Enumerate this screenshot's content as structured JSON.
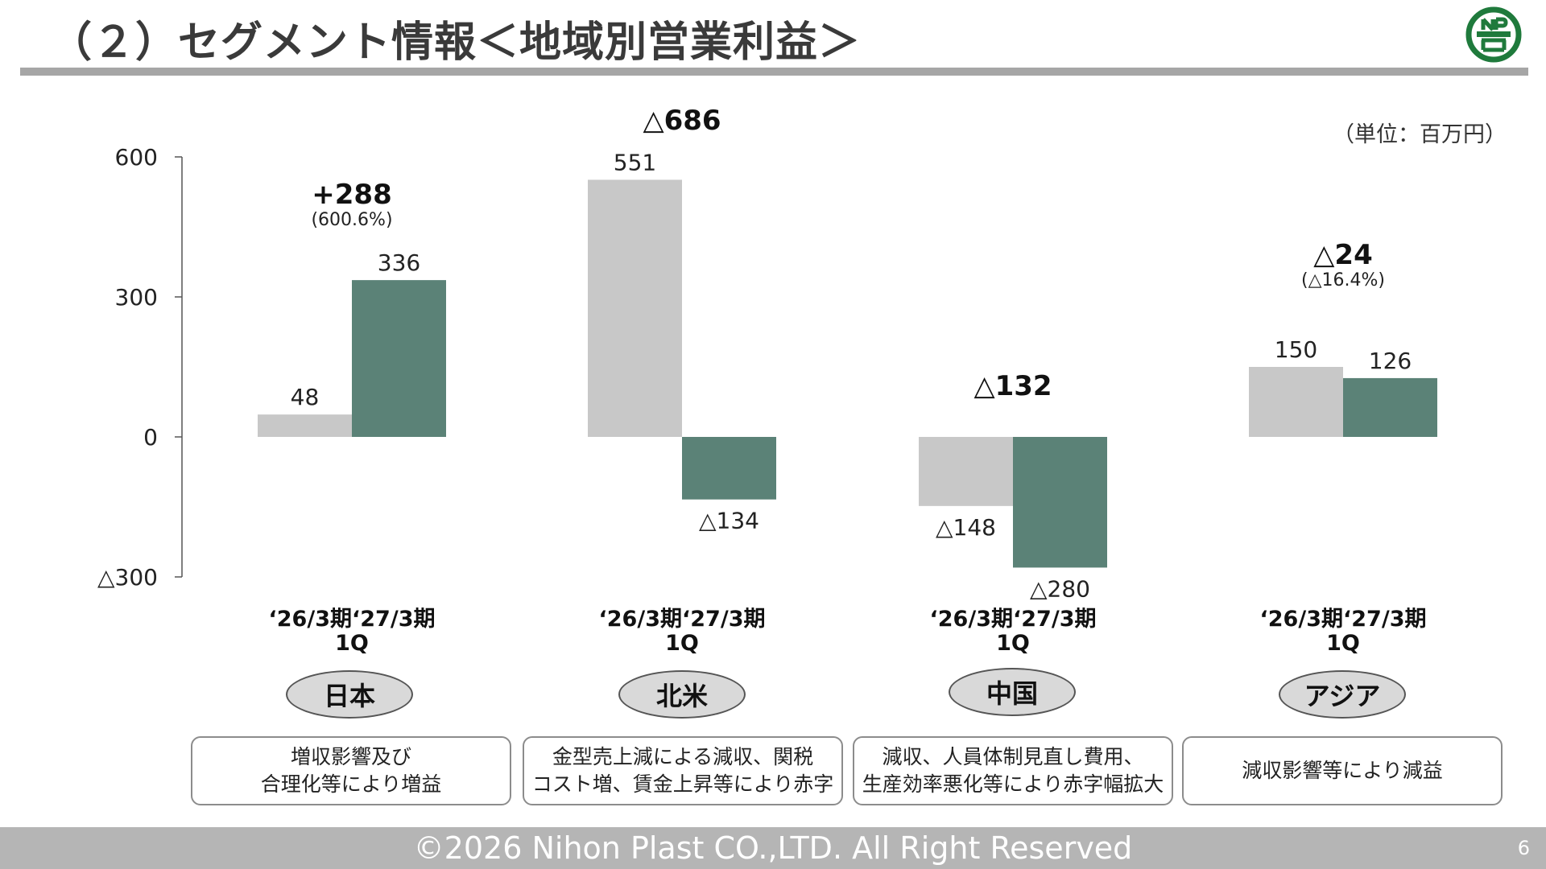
{
  "header": {
    "title": "（２）セグメント情報＜地域別営業利益＞"
  },
  "unit_label": "（単位：百万円）",
  "footer": {
    "copyright": "©2026 Nihon Plast CO.,LTD. All Right Reserved",
    "page": "6"
  },
  "colors": {
    "prior": "#c8c8c8",
    "current": "#5b8277",
    "logo": "#1f7a3c",
    "axis": "#555555"
  },
  "chart_data": {
    "type": "bar",
    "series": [
      {
        "name": "‘26/3期1Q",
        "values": [
          48,
          551,
          -148,
          150
        ]
      },
      {
        "name": "‘27/3期1Q",
        "values": [
          336,
          -134,
          -280,
          126
        ]
      }
    ],
    "categories": [
      "日本",
      "北米",
      "中国",
      "アジア"
    ],
    "value_labels": [
      [
        "48",
        "336"
      ],
      [
        "551",
        "△134"
      ],
      [
        "△148",
        "△280"
      ],
      [
        "150",
        "126"
      ]
    ],
    "ylim": [
      -300,
      600
    ],
    "yticks": [
      600,
      300,
      0,
      -300
    ],
    "ytick_labels": [
      "600",
      "300",
      "0",
      "△300"
    ]
  },
  "period_labels": [
    "‘26/3期",
    "‘27/3期",
    "1Q"
  ],
  "regions": [
    {
      "name": "日本",
      "diff": "+288",
      "diff_pct": "(600.6%)",
      "note": "増収影響及び\n合理化等により増益"
    },
    {
      "name": "北米",
      "diff": "△686",
      "diff_pct": "",
      "note": "金型売上減による減収、関税\nコスト増、賃金上昇等により赤字"
    },
    {
      "name": "中国",
      "diff": "△132",
      "diff_pct": "",
      "note": "減収、人員体制見直し費用、\n生産効率悪化等により赤字幅拡大"
    },
    {
      "name": "アジア",
      "diff": "△24",
      "diff_pct": "(△16.4%)",
      "note": "減収影響等により減益"
    }
  ]
}
